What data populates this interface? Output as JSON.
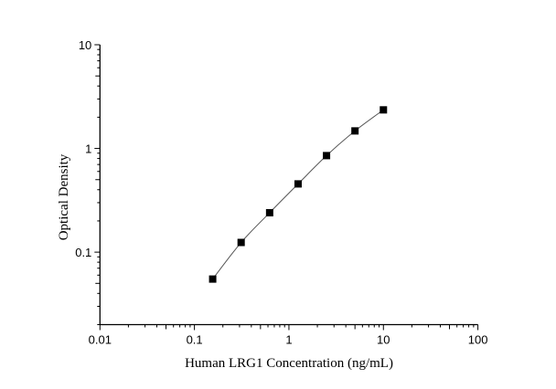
{
  "chart_data": {
    "type": "scatter",
    "title": "",
    "xlabel": "Human LRG1 Concentration (ng/mL)",
    "ylabel": "Optical Density",
    "xscale": "log",
    "yscale": "log",
    "xlim": [
      0.01,
      100
    ],
    "ylim": [
      0.02,
      10
    ],
    "x_ticks": [
      "0.01",
      "0.1",
      "1",
      "10",
      "100"
    ],
    "y_ticks": [
      "0.1",
      "1",
      "10"
    ],
    "grid": false,
    "legend": "none",
    "marker": "square",
    "line": "smooth fitted curve",
    "colors": {
      "marker": "#000000",
      "line": "#555555"
    },
    "series": [
      {
        "x": [
          0.156,
          0.312,
          0.625,
          1.25,
          2.5,
          5,
          10
        ],
        "y": [
          0.055,
          0.124,
          0.24,
          0.455,
          0.853,
          1.476,
          2.355
        ]
      }
    ]
  }
}
